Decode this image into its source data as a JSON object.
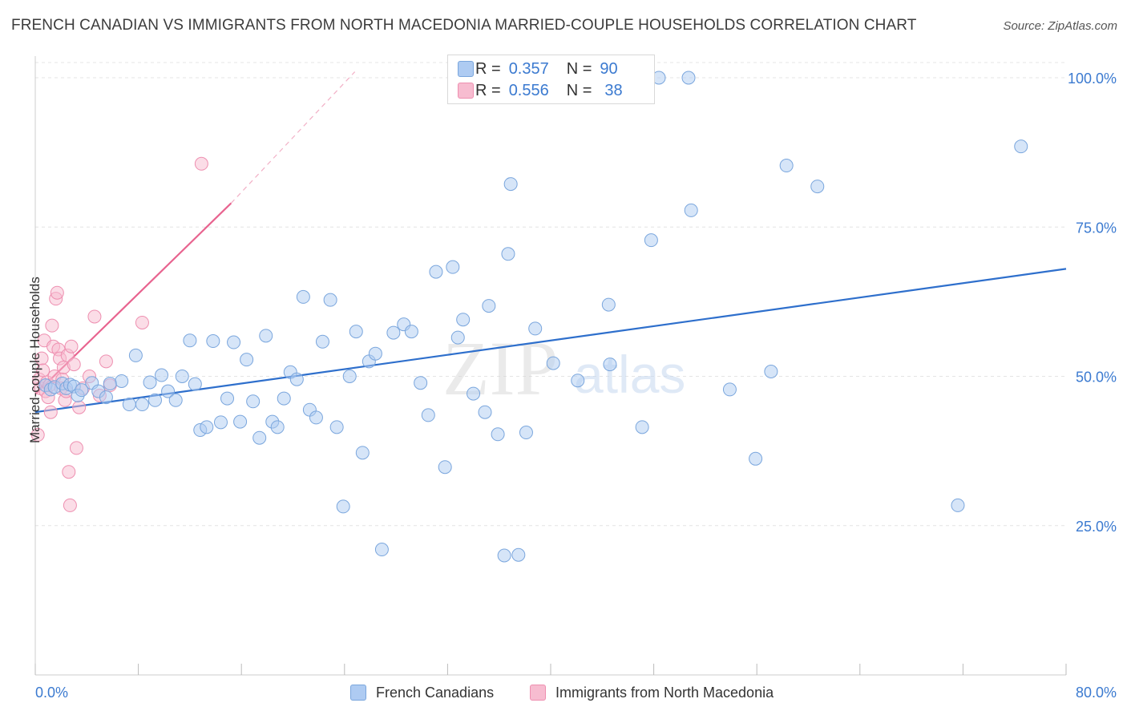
{
  "header": {
    "title": "FRENCH CANADIAN VS IMMIGRANTS FROM NORTH MACEDONIA MARRIED-COUPLE HOUSEHOLDS CORRELATION CHART",
    "source": "Source: ZipAtlas.com"
  },
  "legend": {
    "r_label": "R =",
    "n_label": "N =",
    "rows": [
      {
        "r": "0.357",
        "n": "90"
      },
      {
        "r": "0.556",
        "n": "38"
      }
    ]
  },
  "bottom_legend": [
    "French Canadians",
    "Immigrants from North Macedonia"
  ],
  "watermark": {
    "zip": "ZIP",
    "atlas": "atlas"
  },
  "colors": {
    "blue_fill": "#aecbf2",
    "blue_stroke": "#7aa6dd",
    "blue_line": "#2e6fcc",
    "pink_fill": "#f7bcd0",
    "pink_stroke": "#ee8fb0",
    "pink_line": "#e8638f",
    "axis_text": "#3b7ad0",
    "grid": "#e4e4e4"
  },
  "chart_data": {
    "type": "scatter",
    "title": "FRENCH CANADIAN VS IMMIGRANTS FROM NORTH MACEDONIA MARRIED-COUPLE HOUSEHOLDS CORRELATION CHART",
    "xlabel": "",
    "ylabel": "Married-couple Households",
    "xlim": [
      0,
      80
    ],
    "ylim": [
      0,
      102
    ],
    "x_tick_labels": [
      "0.0%",
      "80.0%"
    ],
    "y_ticks": [
      25,
      50,
      75,
      100
    ],
    "y_tick_labels": [
      "25.0%",
      "50.0%",
      "75.0%",
      "100.0%"
    ],
    "grid": true,
    "legend_position": "top-center",
    "series": [
      {
        "name": "French Canadians",
        "r": 0.357,
        "n": 90,
        "trend": {
          "x0": 0,
          "y0": 44.0,
          "x1": 80,
          "y1": 68.0
        },
        "points": [
          [
            0.8,
            48.5
          ],
          [
            1.2,
            47.8
          ],
          [
            1.5,
            48.2
          ],
          [
            2.1,
            48.8
          ],
          [
            2.4,
            48.0
          ],
          [
            2.7,
            48.6
          ],
          [
            3.0,
            48.3
          ],
          [
            3.3,
            46.8
          ],
          [
            3.6,
            47.7
          ],
          [
            4.4,
            48.9
          ],
          [
            4.9,
            47.5
          ],
          [
            5.5,
            46.5
          ],
          [
            6.7,
            49.2
          ],
          [
            5.8,
            48.8
          ],
          [
            7.3,
            45.3
          ],
          [
            7.8,
            53.5
          ],
          [
            8.3,
            45.3
          ],
          [
            8.9,
            49.0
          ],
          [
            9.3,
            46.0
          ],
          [
            9.8,
            50.2
          ],
          [
            10.3,
            47.5
          ],
          [
            10.9,
            46.0
          ],
          [
            11.4,
            50.0
          ],
          [
            12.0,
            56.0
          ],
          [
            12.4,
            48.7
          ],
          [
            12.8,
            41.0
          ],
          [
            13.3,
            41.5
          ],
          [
            13.8,
            55.9
          ],
          [
            14.4,
            42.3
          ],
          [
            14.9,
            46.3
          ],
          [
            15.4,
            55.7
          ],
          [
            15.9,
            42.4
          ],
          [
            16.4,
            52.8
          ],
          [
            16.9,
            45.8
          ],
          [
            17.4,
            39.7
          ],
          [
            17.9,
            56.8
          ],
          [
            18.4,
            42.4
          ],
          [
            18.8,
            41.5
          ],
          [
            19.3,
            46.3
          ],
          [
            19.8,
            50.7
          ],
          [
            20.3,
            49.5
          ],
          [
            20.8,
            63.3
          ],
          [
            21.3,
            44.4
          ],
          [
            21.8,
            43.1
          ],
          [
            22.3,
            55.8
          ],
          [
            22.9,
            62.8
          ],
          [
            23.4,
            41.5
          ],
          [
            23.9,
            28.2
          ],
          [
            24.4,
            50.0
          ],
          [
            24.9,
            57.5
          ],
          [
            25.4,
            37.2
          ],
          [
            25.9,
            52.5
          ],
          [
            26.4,
            53.8
          ],
          [
            26.9,
            21.0
          ],
          [
            27.8,
            57.3
          ],
          [
            28.6,
            58.7
          ],
          [
            29.2,
            57.5
          ],
          [
            29.9,
            48.9
          ],
          [
            30.5,
            43.5
          ],
          [
            31.1,
            67.5
          ],
          [
            31.8,
            34.8
          ],
          [
            32.4,
            68.3
          ],
          [
            32.8,
            56.5
          ],
          [
            33.2,
            59.5
          ],
          [
            34.0,
            47.1
          ],
          [
            34.9,
            44.0
          ],
          [
            35.2,
            61.8
          ],
          [
            35.9,
            40.3
          ],
          [
            36.4,
            20.0
          ],
          [
            36.7,
            70.5
          ],
          [
            36.9,
            82.2
          ],
          [
            37.5,
            20.1
          ],
          [
            38.1,
            40.6
          ],
          [
            38.8,
            58.0
          ],
          [
            40.2,
            52.2
          ],
          [
            42.1,
            49.3
          ],
          [
            44.5,
            62.0
          ],
          [
            44.6,
            52.0
          ],
          [
            47.1,
            41.5
          ],
          [
            47.8,
            72.8
          ],
          [
            48.4,
            100.0
          ],
          [
            50.7,
            100.0
          ],
          [
            50.9,
            77.8
          ],
          [
            53.9,
            47.8
          ],
          [
            55.9,
            36.2
          ],
          [
            57.1,
            50.8
          ],
          [
            58.3,
            85.3
          ],
          [
            60.7,
            81.8
          ],
          [
            71.6,
            28.4
          ],
          [
            76.5,
            88.5
          ]
        ]
      },
      {
        "name": "Immigrants from North Macedonia",
        "r": 0.556,
        "n": 38,
        "trend": {
          "x0": 0,
          "y0": 47.0,
          "x1": 15.2,
          "y1": 79.0,
          "dashed_to": {
            "x": 24.8,
            "y": 101.0
          }
        },
        "points": [
          [
            0.2,
            40.2
          ],
          [
            0.3,
            49.5
          ],
          [
            0.4,
            48.0
          ],
          [
            0.5,
            53.0
          ],
          [
            0.6,
            51.0
          ],
          [
            0.7,
            56.0
          ],
          [
            0.8,
            47.5
          ],
          [
            0.9,
            49.0
          ],
          [
            1.0,
            46.5
          ],
          [
            1.1,
            48.5
          ],
          [
            1.2,
            44.0
          ],
          [
            1.3,
            58.5
          ],
          [
            1.4,
            55.0
          ],
          [
            1.5,
            50.0
          ],
          [
            1.6,
            63.0
          ],
          [
            1.7,
            64.0
          ],
          [
            1.8,
            54.5
          ],
          [
            1.9,
            53.0
          ],
          [
            2.0,
            48.0
          ],
          [
            2.1,
            49.5
          ],
          [
            2.2,
            51.5
          ],
          [
            2.3,
            46.0
          ],
          [
            2.4,
            47.5
          ],
          [
            2.5,
            53.5
          ],
          [
            2.6,
            34.0
          ],
          [
            2.7,
            28.4
          ],
          [
            2.8,
            55.0
          ],
          [
            3.0,
            52.0
          ],
          [
            3.2,
            38.0
          ],
          [
            3.4,
            44.8
          ],
          [
            3.7,
            48.0
          ],
          [
            4.2,
            50.0
          ],
          [
            4.6,
            60.0
          ],
          [
            5.0,
            46.8
          ],
          [
            5.5,
            52.5
          ],
          [
            5.8,
            48.5
          ],
          [
            8.3,
            59.0
          ],
          [
            12.9,
            85.6
          ]
        ]
      }
    ]
  }
}
